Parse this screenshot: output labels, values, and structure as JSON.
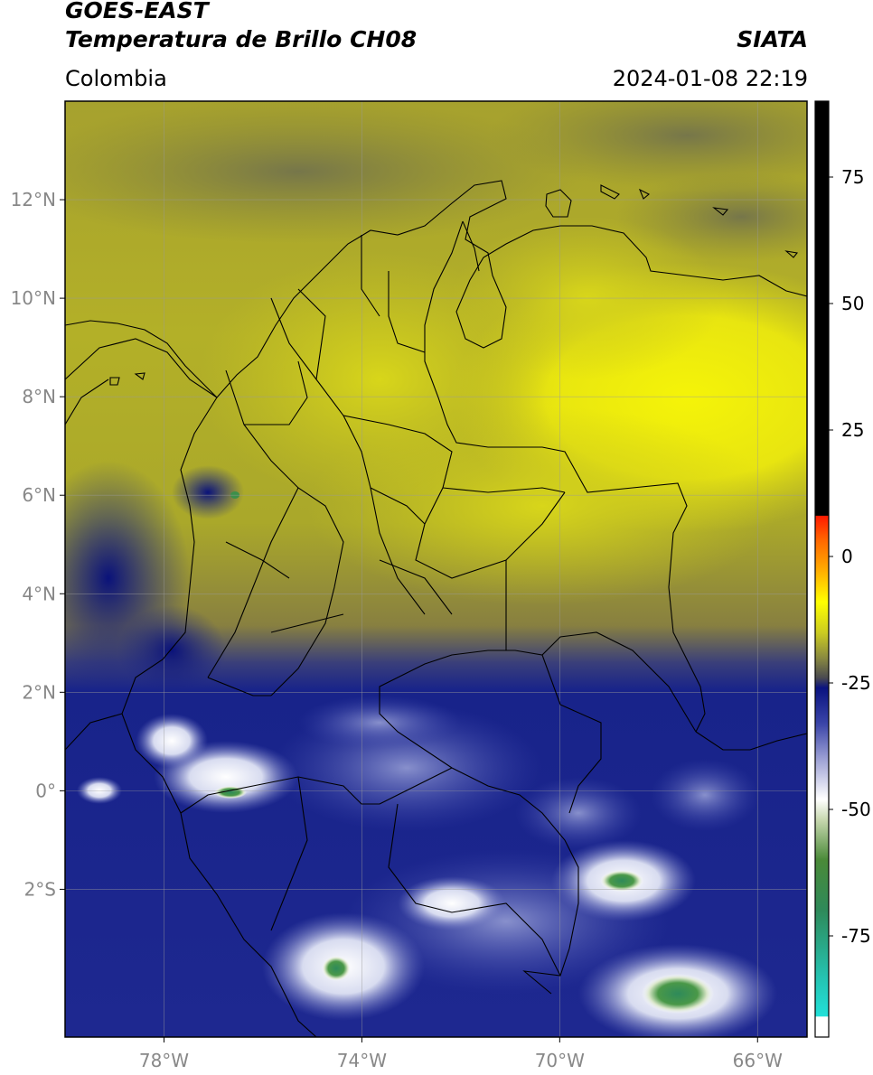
{
  "header": {
    "satellite": "GOES-EAST",
    "product": "Temperatura de Brillo CH08",
    "region": "Colombia",
    "agency": "SIATA",
    "datetime": "2024-01-08 22:19"
  },
  "map": {
    "lon_range": [
      -80,
      -65
    ],
    "lat_range": [
      -5,
      14
    ],
    "lat_ticks": [
      {
        "value": 12,
        "label": "12°N"
      },
      {
        "value": 10,
        "label": "10°N"
      },
      {
        "value": 8,
        "label": "8°N"
      },
      {
        "value": 6,
        "label": "6°N"
      },
      {
        "value": 4,
        "label": "4°N"
      },
      {
        "value": 2,
        "label": "2°N"
      },
      {
        "value": 0,
        "label": "0°"
      },
      {
        "value": -2,
        "label": "2°S"
      }
    ],
    "lon_ticks": [
      {
        "value": -78,
        "label": "78°W"
      },
      {
        "value": -74,
        "label": "74°W"
      },
      {
        "value": -70,
        "label": "70°W"
      },
      {
        "value": -66,
        "label": "66°W"
      }
    ],
    "grid": true,
    "colors": {
      "cold_blue": "#1e2a8c",
      "white_clouds": "#e8eaf6",
      "green_cores": "#3d8f4a",
      "olive": "#8f9230",
      "yellow": "#f2f00a",
      "gray_olive": "#7d7d45",
      "border": "#000000",
      "grid": "#9a9a9a"
    }
  },
  "colorbar": {
    "range": [
      -95,
      90
    ],
    "ticks": [
      {
        "value": 75,
        "label": "75"
      },
      {
        "value": 50,
        "label": "50"
      },
      {
        "value": 25,
        "label": "25"
      },
      {
        "value": 0,
        "label": "0"
      },
      {
        "value": -25,
        "label": "-25"
      },
      {
        "value": -50,
        "label": "-50"
      },
      {
        "value": -75,
        "label": "-75"
      }
    ],
    "stops": [
      {
        "value": -95,
        "color": "#ffffff"
      },
      {
        "value": -91,
        "color": "#ffffff"
      },
      {
        "value": -90.9,
        "color": "#22e0d8"
      },
      {
        "value": -83,
        "color": "#25c2b0"
      },
      {
        "value": -70,
        "color": "#2e8a5a"
      },
      {
        "value": -60,
        "color": "#4a8a38"
      },
      {
        "value": -52,
        "color": "#c8d8b0"
      },
      {
        "value": -48,
        "color": "#ffffff"
      },
      {
        "value": -40,
        "color": "#9ca0d4"
      },
      {
        "value": -33,
        "color": "#3a44a8"
      },
      {
        "value": -26,
        "color": "#0a1380"
      },
      {
        "value": -24,
        "color": "#4a4a50"
      },
      {
        "value": -20,
        "color": "#8a8a40"
      },
      {
        "value": -15,
        "color": "#cccc20"
      },
      {
        "value": -9,
        "color": "#ffff00"
      },
      {
        "value": -3,
        "color": "#ffb000"
      },
      {
        "value": 3,
        "color": "#ff6a00"
      },
      {
        "value": 8,
        "color": "#ff1a00"
      },
      {
        "value": 8.1,
        "color": "#000000"
      },
      {
        "value": 90,
        "color": "#000000"
      }
    ]
  }
}
